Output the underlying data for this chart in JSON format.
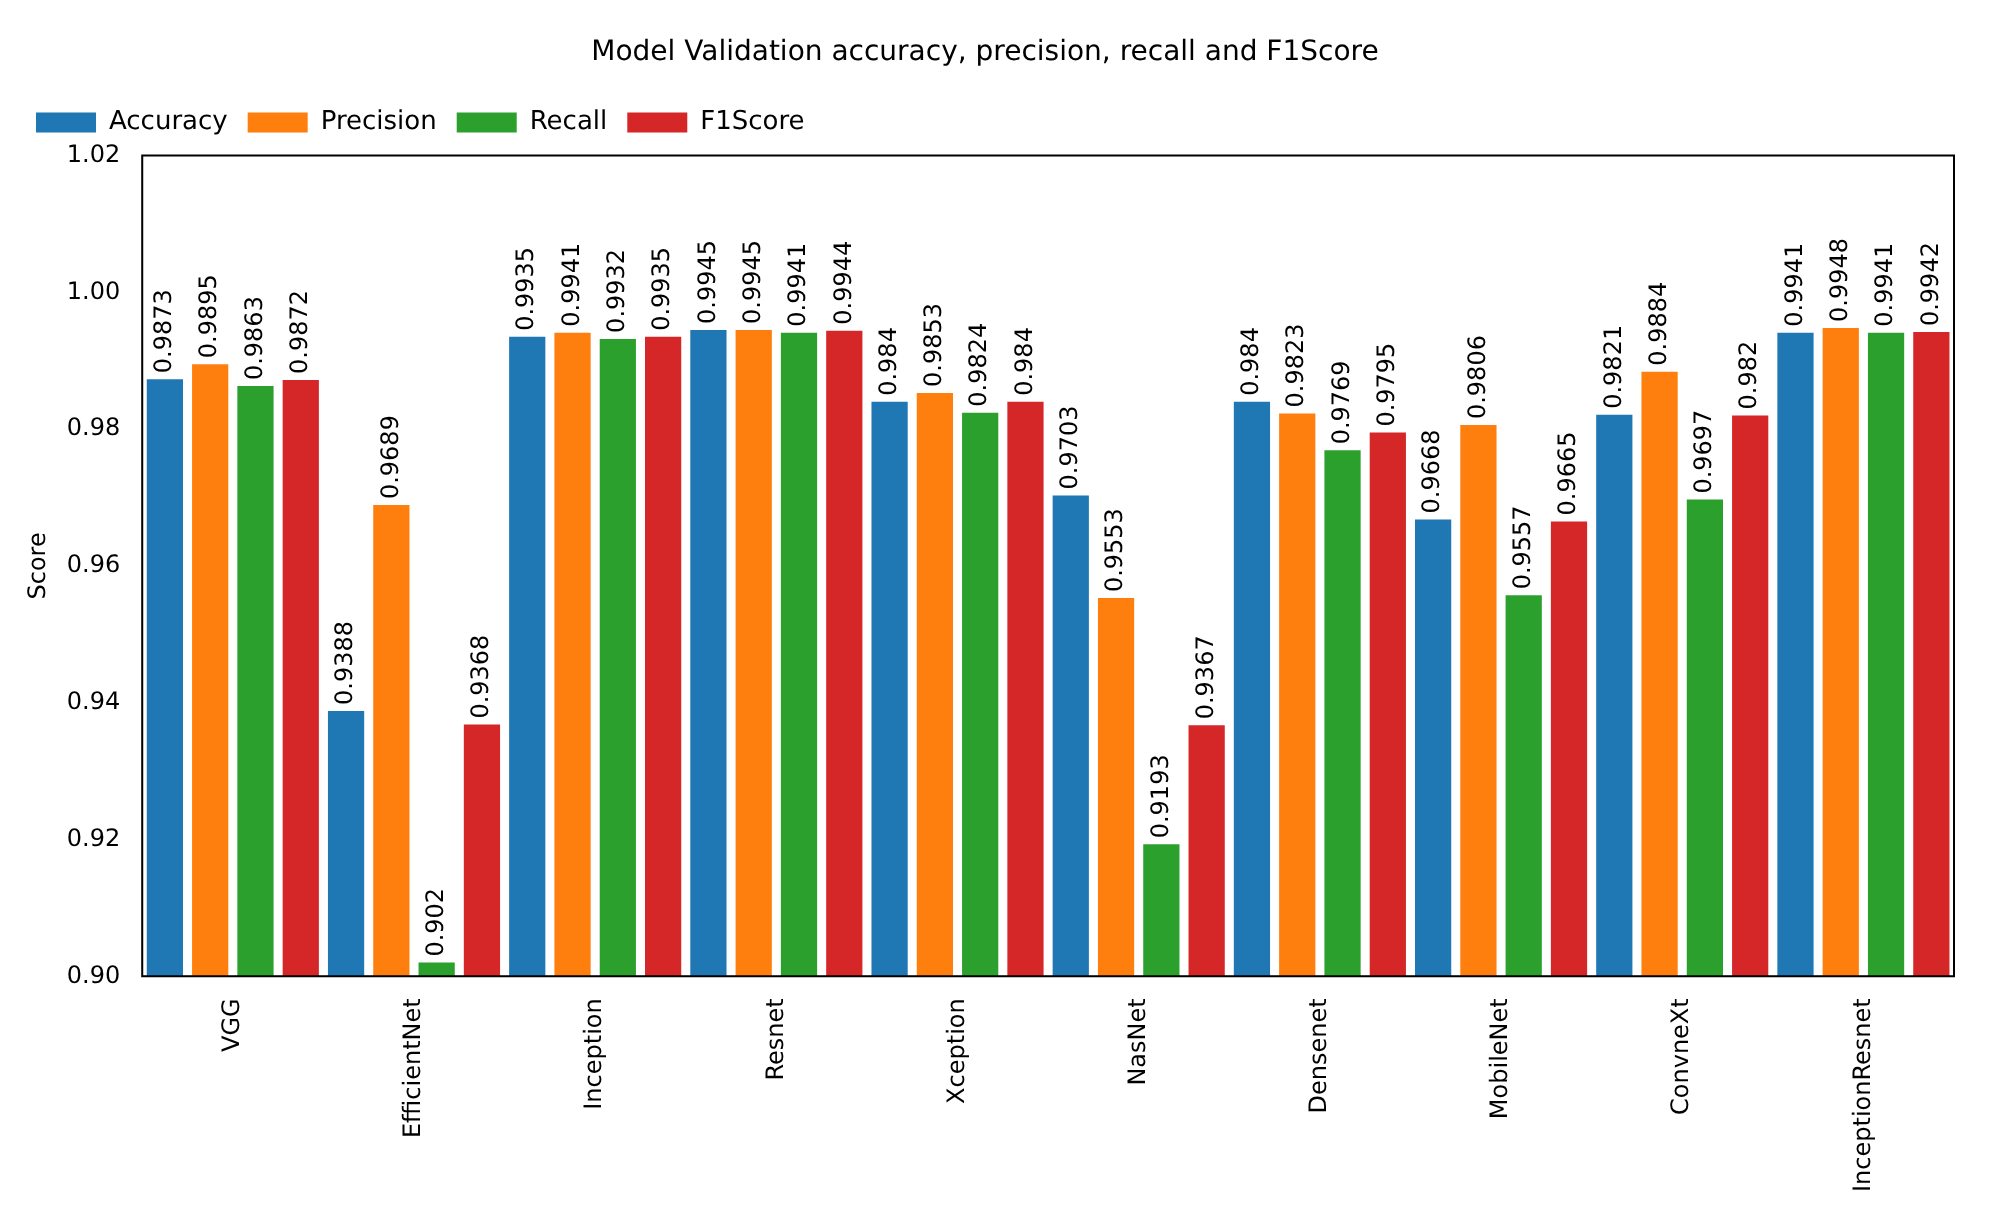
{
  "chart_data": {
    "type": "bar",
    "title": "Model Validation accuracy, precision, recall and F1Score",
    "ylabel": "Score",
    "categories": [
      "VGG",
      "EfficientNet",
      "Inception",
      "Resnet",
      "Xception",
      "NasNet",
      "Densenet",
      "MobileNet",
      "ConvneXt",
      "InceptionResnet"
    ],
    "series": [
      {
        "name": "Accuracy",
        "color": "#1f77b4",
        "values": [
          0.9873,
          0.9388,
          0.9935,
          0.9945,
          0.984,
          0.9703,
          0.984,
          0.9668,
          0.9821,
          0.9941
        ]
      },
      {
        "name": "Precision",
        "color": "#ff7f0e",
        "values": [
          0.9895,
          0.9689,
          0.9941,
          0.9945,
          0.9853,
          0.9553,
          0.9823,
          0.9806,
          0.9884,
          0.9948
        ]
      },
      {
        "name": "Recall",
        "color": "#2ca02c",
        "values": [
          0.9863,
          0.902,
          0.9932,
          0.9941,
          0.9824,
          0.9193,
          0.9769,
          0.9557,
          0.9697,
          0.9941
        ]
      },
      {
        "name": "F1Score",
        "color": "#d62728",
        "values": [
          0.9872,
          0.9368,
          0.9935,
          0.9944,
          0.984,
          0.9367,
          0.9795,
          0.9665,
          0.982,
          0.9942
        ]
      }
    ],
    "ylim": [
      0.9,
      1.02
    ],
    "yticks": [
      {
        "value": 0.9,
        "label": "0.90"
      },
      {
        "value": 0.92,
        "label": "0.92"
      },
      {
        "value": 0.94,
        "label": "0.94"
      },
      {
        "value": 0.96,
        "label": "0.96"
      },
      {
        "value": 0.98,
        "label": "0.98"
      },
      {
        "value": 1.0,
        "label": "1.00"
      },
      {
        "value": 1.02,
        "label": "1.02"
      }
    ],
    "data_labels": true,
    "legend": "top left",
    "grid": false
  }
}
